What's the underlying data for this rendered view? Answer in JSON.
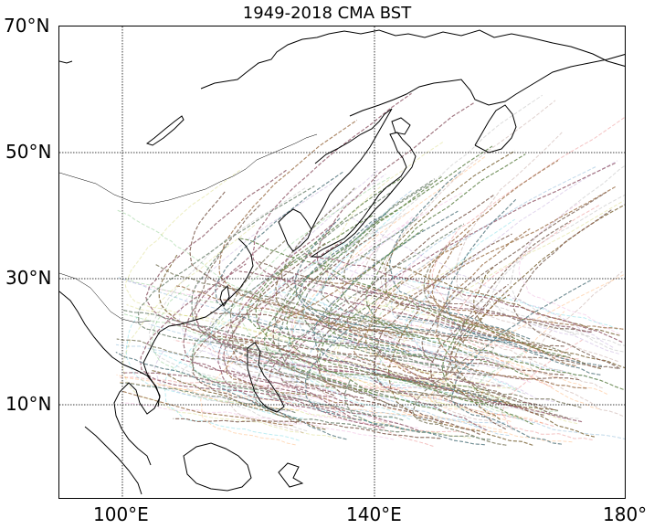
{
  "title": "1949-2018 CMA BST",
  "lat_labels": [
    "70°N",
    "50°N",
    "30°N",
    "10°N"
  ],
  "lon_labels": [
    "100°E",
    "140°E",
    "180°"
  ],
  "colors": [
    "#1f77b4",
    "#ff7f0e",
    "#2ca02c",
    "#d62728",
    "#9467bd",
    "#8c564b",
    "#e377c2",
    "#7f7f7f",
    "#bcbd22",
    "#17becf"
  ]
}
